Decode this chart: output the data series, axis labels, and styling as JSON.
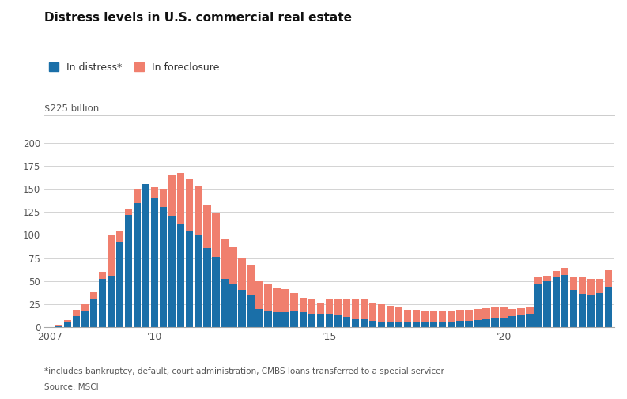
{
  "title": "Distress levels in U.S. commercial real estate",
  "ylabel": "$225 billion",
  "footnote": "*includes bankruptcy, default, court administration, CMBS loans transferred to a special servicer",
  "source": "Source: MSCI",
  "legend_distress": "In distress*",
  "legend_foreclosure": "In foreclosure",
  "color_distress": "#1a6fa8",
  "color_foreclosure": "#f07f6e",
  "background_color": "#ffffff",
  "ylim": [
    0,
    225
  ],
  "yticks": [
    0,
    25,
    50,
    75,
    100,
    125,
    150,
    175,
    200
  ],
  "distress": [
    0,
    2,
    5,
    12,
    17,
    30,
    52,
    56,
    93,
    122,
    135,
    155,
    140,
    130,
    120,
    112,
    105,
    100,
    86,
    76,
    52,
    47,
    40,
    35,
    20,
    18,
    16,
    16,
    17,
    16,
    15,
    14,
    14,
    13,
    11,
    9,
    9,
    7,
    6,
    6,
    6,
    5,
    5,
    5,
    5,
    5,
    6,
    7,
    7,
    8,
    9,
    10,
    10,
    12,
    13,
    14,
    46,
    50,
    55,
    57,
    40,
    36,
    35,
    37,
    44
  ],
  "foreclosure": [
    0,
    1,
    3,
    7,
    8,
    8,
    8,
    44,
    12,
    7,
    15,
    0,
    12,
    20,
    45,
    55,
    55,
    53,
    47,
    48,
    43,
    40,
    35,
    32,
    30,
    28,
    26,
    25,
    20,
    16,
    15,
    13,
    16,
    18,
    20,
    21,
    21,
    20,
    19,
    17,
    16,
    14,
    14,
    13,
    12,
    12,
    12,
    12,
    12,
    12,
    12,
    12,
    12,
    8,
    8,
    8,
    8,
    6,
    6,
    7,
    15,
    18,
    17,
    15,
    18
  ],
  "xtick_labels": [
    "2007",
    "'10",
    "'15",
    "'20"
  ],
  "xtick_positions": [
    0,
    12,
    32,
    52
  ]
}
